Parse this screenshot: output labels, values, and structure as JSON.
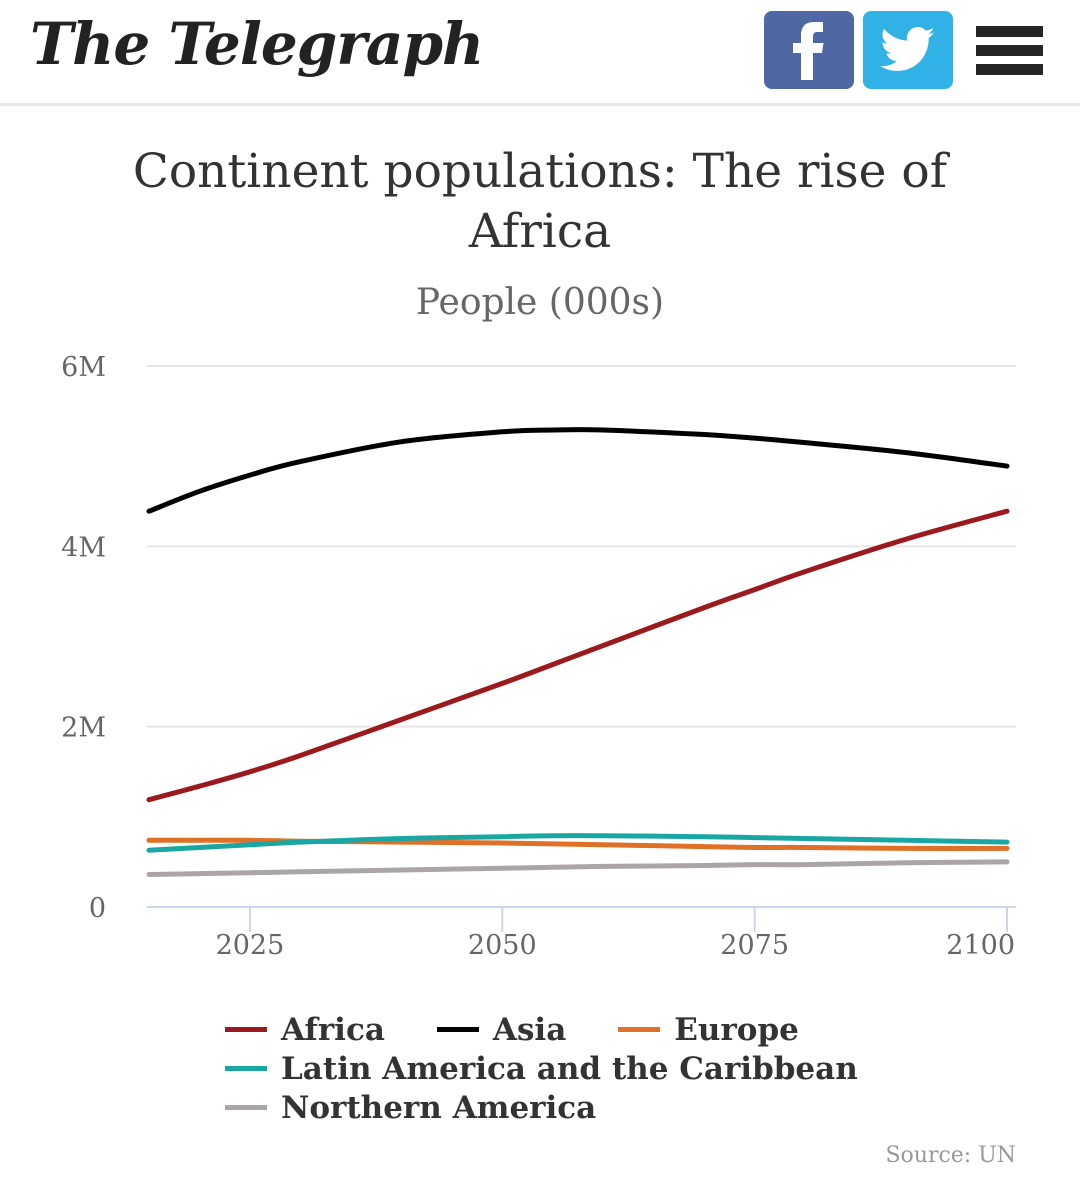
{
  "header": {
    "logo_text": "The Telegraph",
    "share_facebook": "f",
    "share_twitter": "twitter-bird",
    "menu": "hamburger-menu"
  },
  "footer": {
    "source": "Source: UN"
  },
  "chart_data": {
    "type": "line",
    "title": "Continent populations: The rise of Africa",
    "subtitle": "People (000s)",
    "xlabel": "",
    "ylabel": "",
    "xlim": [
      2015,
      2100
    ],
    "ylim": [
      0,
      6
    ],
    "y_unit": "M",
    "yticks": [
      0,
      2,
      4,
      6
    ],
    "ytick_labels": [
      "0",
      "2M",
      "4M",
      "6M"
    ],
    "xticks": [
      2025,
      2050,
      2075,
      2100
    ],
    "xtick_labels": [
      "2025",
      "2050",
      "2075",
      "2100"
    ],
    "grid": true,
    "legend_position": "bottom",
    "x": [
      2015,
      2020,
      2025,
      2030,
      2040,
      2050,
      2055,
      2060,
      2070,
      2075,
      2080,
      2090,
      2100
    ],
    "series": [
      {
        "name": "Africa",
        "color": "#9b1a1e",
        "values": [
          1.19,
          1.34,
          1.5,
          1.68,
          2.08,
          2.48,
          2.69,
          2.9,
          3.32,
          3.52,
          3.72,
          4.08,
          4.39
        ]
      },
      {
        "name": "Asia",
        "color": "#000000",
        "values": [
          4.39,
          4.61,
          4.79,
          4.94,
          5.16,
          5.27,
          5.29,
          5.29,
          5.24,
          5.2,
          5.15,
          5.04,
          4.89
        ]
      },
      {
        "name": "Europe",
        "color": "#e07027",
        "values": [
          0.74,
          0.74,
          0.74,
          0.73,
          0.72,
          0.71,
          0.7,
          0.69,
          0.67,
          0.66,
          0.66,
          0.65,
          0.65
        ]
      },
      {
        "name": "Latin America and the Caribbean",
        "color": "#1aa7a3",
        "values": [
          0.63,
          0.66,
          0.69,
          0.72,
          0.76,
          0.78,
          0.79,
          0.79,
          0.78,
          0.77,
          0.76,
          0.74,
          0.72
        ]
      },
      {
        "name": "Northern America",
        "color": "#aba5a6",
        "values": [
          0.36,
          0.37,
          0.38,
          0.39,
          0.41,
          0.43,
          0.44,
          0.45,
          0.46,
          0.47,
          0.47,
          0.49,
          0.5
        ]
      }
    ]
  }
}
